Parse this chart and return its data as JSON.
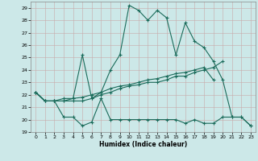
{
  "title": "",
  "xlabel": "Humidex (Indice chaleur)",
  "bg_color": "#cce8e8",
  "line_color": "#1a6b5a",
  "xlim": [
    -0.5,
    23.5
  ],
  "ylim": [
    19,
    29.5
  ],
  "yticks": [
    19,
    20,
    21,
    22,
    23,
    24,
    25,
    26,
    27,
    28,
    29
  ],
  "xticks": [
    0,
    1,
    2,
    3,
    4,
    5,
    6,
    7,
    8,
    9,
    10,
    11,
    12,
    13,
    14,
    15,
    16,
    17,
    18,
    19,
    20,
    21,
    22,
    23
  ],
  "line1_x": [
    0,
    1,
    2,
    3,
    4,
    5,
    6,
    7,
    8,
    9,
    10,
    11,
    12,
    13,
    14,
    15,
    16,
    17,
    18,
    19,
    20,
    21,
    22,
    23
  ],
  "line1_y": [
    22.2,
    21.5,
    21.5,
    20.2,
    20.2,
    19.5,
    19.8,
    21.7,
    20.0,
    20.0,
    20.0,
    20.0,
    20.0,
    20.0,
    20.0,
    20.0,
    19.7,
    20.0,
    19.7,
    19.7,
    20.2,
    20.2,
    20.2,
    19.5
  ],
  "line2_x": [
    0,
    1,
    2,
    3,
    4,
    5,
    6,
    7,
    8,
    9,
    10,
    11,
    12,
    13,
    14,
    15,
    16,
    17,
    18,
    19,
    20,
    21,
    22,
    23
  ],
  "line2_y": [
    22.2,
    21.5,
    21.5,
    21.5,
    21.5,
    21.5,
    21.7,
    22.0,
    22.2,
    22.5,
    22.7,
    22.8,
    23.0,
    23.0,
    23.2,
    23.5,
    23.5,
    23.8,
    24.0,
    24.2,
    24.7,
    null,
    null,
    null
  ],
  "line3_x": [
    0,
    1,
    2,
    3,
    4,
    5,
    6,
    7,
    8,
    9,
    10,
    11,
    12,
    13,
    14,
    15,
    16,
    17,
    18,
    19,
    20,
    21,
    22,
    23
  ],
  "line3_y": [
    22.2,
    21.5,
    21.5,
    21.5,
    21.7,
    21.8,
    22.0,
    22.2,
    22.5,
    22.7,
    22.8,
    23.0,
    23.2,
    23.3,
    23.5,
    23.7,
    23.8,
    24.0,
    24.2,
    23.2,
    null,
    null,
    null,
    null
  ],
  "line4_x": [
    0,
    1,
    2,
    3,
    4,
    5,
    6,
    7,
    8,
    9,
    10,
    11,
    12,
    13,
    14,
    15,
    16,
    17,
    18,
    19,
    20,
    21,
    22,
    23
  ],
  "line4_y": [
    22.2,
    21.5,
    21.5,
    21.7,
    21.7,
    25.2,
    21.7,
    22.2,
    24.0,
    25.2,
    29.2,
    28.8,
    28.0,
    28.8,
    28.2,
    25.2,
    27.8,
    26.3,
    25.8,
    24.7,
    23.2,
    20.2,
    20.2,
    19.5
  ]
}
